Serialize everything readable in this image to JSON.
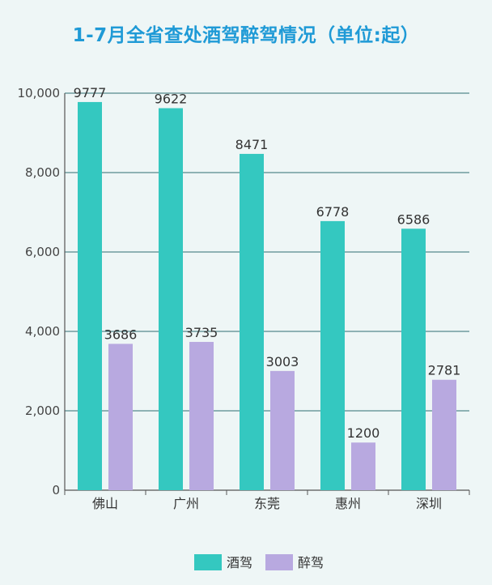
{
  "chart_data": {
    "type": "bar",
    "title": "1-7月全省查处酒驾醉驾情况（单位:起）",
    "categories": [
      "佛山",
      "广州",
      "东莞",
      "惠州",
      "深圳"
    ],
    "series": [
      {
        "name": "酒驾",
        "values": [
          9777,
          9622,
          8471,
          6778,
          6586
        ],
        "color": "#34c8c0"
      },
      {
        "name": "醉驾",
        "values": [
          3686,
          3735,
          3003,
          1200,
          2781
        ],
        "color": "#b8a9e0"
      }
    ],
    "yticks": [
      "0",
      "2,000",
      "4,000",
      "6,000",
      "8,000",
      "10,000"
    ],
    "ylim": [
      0,
      10000
    ],
    "grid": true,
    "legend": "bottom"
  }
}
